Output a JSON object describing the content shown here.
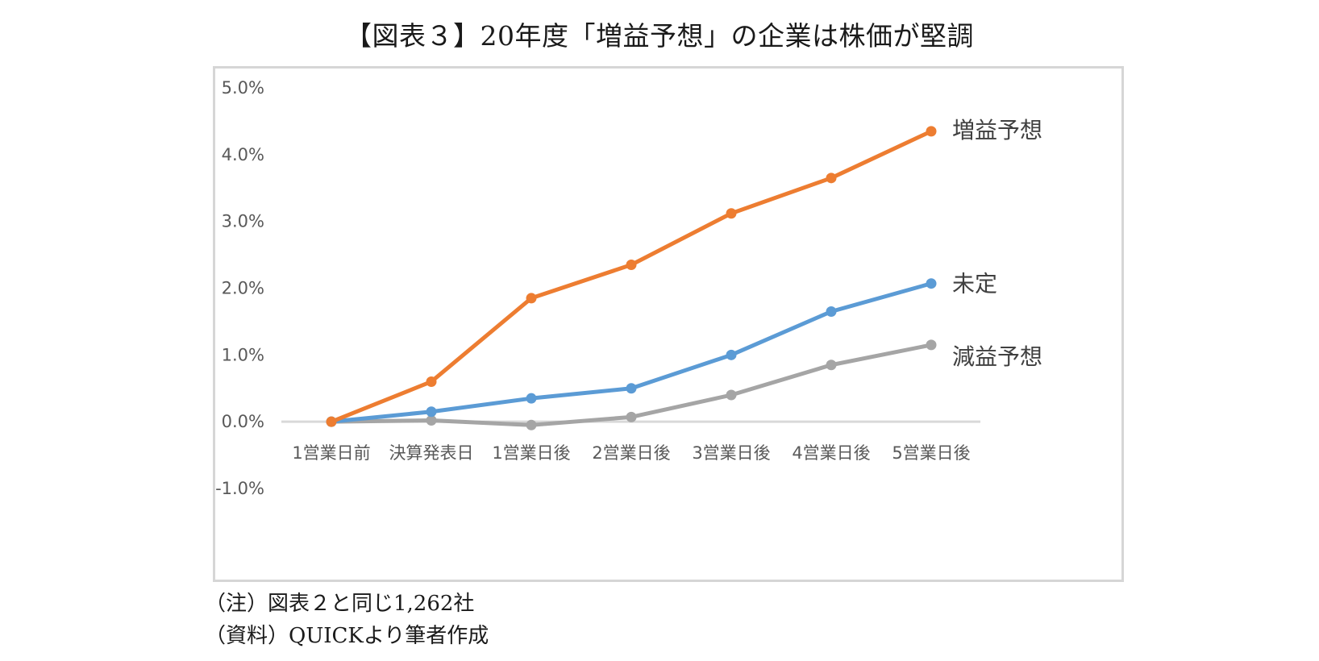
{
  "title": "【図表３】20年度「増益予想」の企業は株価が堅調",
  "notes": {
    "note": "（注）図表２と同じ1,262社",
    "source": "（資料）QUICKより筆者作成"
  },
  "chart_data": {
    "type": "line",
    "title": "",
    "xlabel": "",
    "ylabel": "",
    "categories": [
      "1営業日前",
      "決算発表日",
      "1営業日後",
      "2営業日後",
      "3営業日後",
      "4営業日後",
      "5営業日後"
    ],
    "y_ticks": [
      "5.0%",
      "4.0%",
      "3.0%",
      "2.0%",
      "1.0%",
      "0.0%",
      "-1.0%"
    ],
    "ylim": [
      -1.0,
      5.0
    ],
    "y_unit": "%",
    "grid": false,
    "legend": "inline labels at line ends",
    "series": [
      {
        "name": "増益予想",
        "color": "#ED7D31",
        "values": [
          0.0,
          0.6,
          1.85,
          2.35,
          3.12,
          3.65,
          4.35
        ]
      },
      {
        "name": "未定",
        "color": "#5B9BD5",
        "values": [
          0.0,
          0.15,
          0.35,
          0.5,
          1.0,
          1.65,
          2.07
        ]
      },
      {
        "name": "減益予想",
        "color": "#A5A5A5",
        "values": [
          0.0,
          0.02,
          -0.05,
          0.07,
          0.4,
          0.85,
          1.15
        ]
      }
    ]
  }
}
